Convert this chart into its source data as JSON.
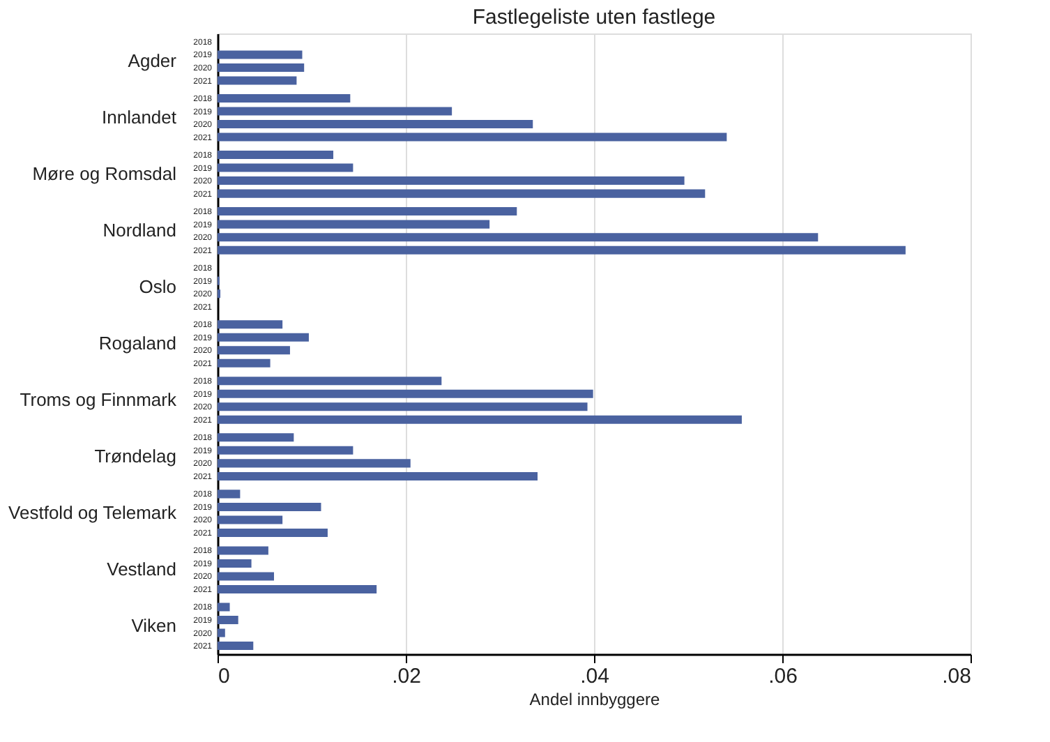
{
  "chart_data": {
    "type": "bar",
    "orientation": "horizontal",
    "title": "Fastlegeliste uten fastlege",
    "xlabel": "Andel innbyggere",
    "categories": [
      "Agder",
      "Innlandet",
      "Møre og Romsdal",
      "Nordland",
      "Oslo",
      "Rogaland",
      "Troms og Finnmark",
      "Trøndelag",
      "Vestfold og Telemark",
      "Vestland",
      "Viken"
    ],
    "series": [
      {
        "name": "2018",
        "color": "#4a62a0",
        "values": [
          null,
          0.0141,
          0.0123,
          0.0318,
          null,
          0.0069,
          0.0238,
          0.0081,
          0.0024,
          0.0054,
          0.0013
        ]
      },
      {
        "name": "2019",
        "color": "#4a62a0",
        "values": [
          0.009,
          0.0249,
          0.0144,
          0.0289,
          0.0002,
          0.0097,
          0.0399,
          0.0144,
          0.011,
          0.0036,
          0.0022
        ]
      },
      {
        "name": "2020",
        "color": "#4a62a0",
        "values": [
          0.0092,
          0.0335,
          0.0496,
          0.0638,
          0.0003,
          0.0077,
          0.0393,
          0.0205,
          0.0069,
          0.006,
          0.0008
        ]
      },
      {
        "name": "2021",
        "color": "#4a62a0",
        "values": [
          0.0084,
          0.0541,
          0.0518,
          0.0731,
          null,
          0.0056,
          0.0557,
          0.034,
          0.0117,
          0.0169,
          0.0038
        ]
      }
    ],
    "xlim": [
      0,
      0.08
    ],
    "xticks": [
      0,
      {
        "value": 0.02,
        "label": ".02"
      },
      {
        "value": 0.04,
        "label": ".04"
      },
      {
        "value": 0.06,
        "label": ".06"
      },
      {
        "value": 0.08,
        "label": ".08"
      }
    ],
    "grid": "x",
    "legend": false
  }
}
